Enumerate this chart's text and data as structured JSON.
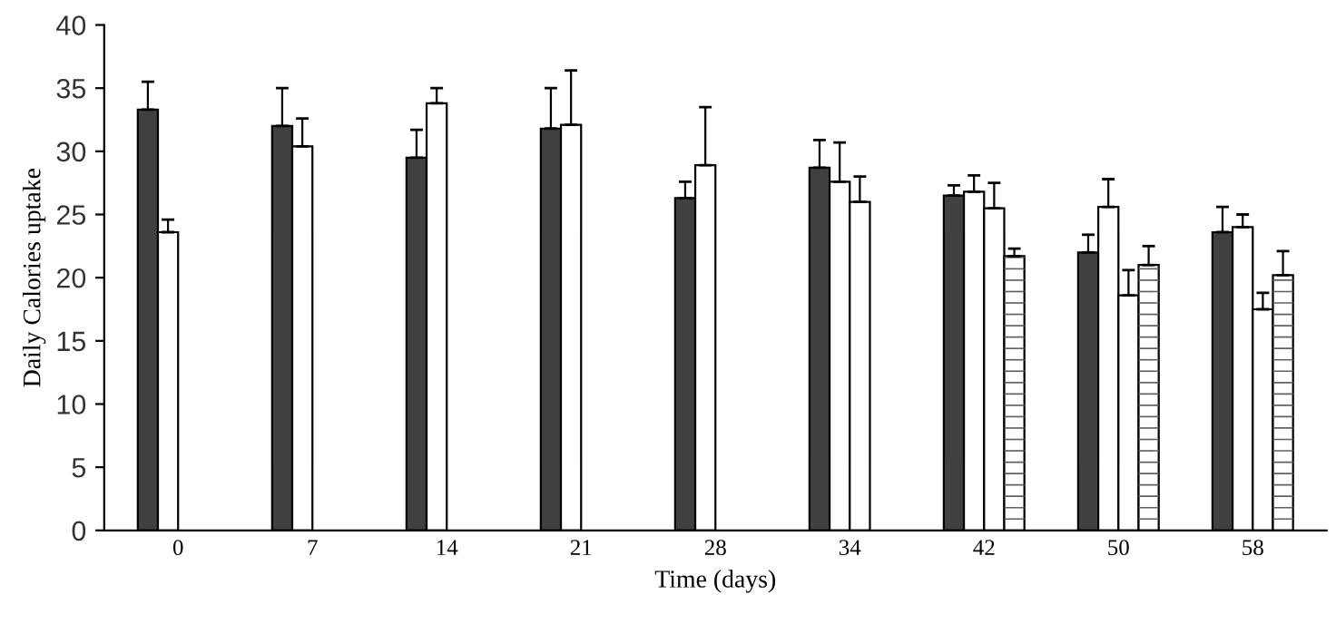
{
  "chart_data": {
    "type": "bar",
    "xlabel": "Time (days)",
    "ylabel": "Daily Calories uptake",
    "categories": [
      "0",
      "7",
      "14",
      "21",
      "28",
      "34",
      "42",
      "50",
      "58"
    ],
    "series": [
      {
        "color": "#404040",
        "values": [
          33.3,
          32.0,
          29.5,
          31.8,
          26.3,
          28.7,
          26.5,
          22.0,
          23.6
        ],
        "errors": [
          2.2,
          3.0,
          2.2,
          3.2,
          1.3,
          2.2,
          0.8,
          1.4,
          2.0
        ]
      },
      {
        "color": "#ffffff",
        "values": [
          23.6,
          30.4,
          33.8,
          32.1,
          28.9,
          27.6,
          26.8,
          25.6,
          24.0
        ],
        "errors": [
          1.0,
          2.2,
          1.2,
          4.3,
          4.6,
          3.1,
          1.3,
          2.2,
          1.0
        ]
      },
      {
        "color": "#ffffff",
        "values": [
          null,
          null,
          null,
          null,
          null,
          26.0,
          25.5,
          18.6,
          17.5
        ],
        "errors": [
          null,
          null,
          null,
          null,
          null,
          2.0,
          2.0,
          2.0,
          1.3
        ]
      },
      {
        "color": "#ffffff",
        "values": [
          null,
          null,
          null,
          null,
          null,
          null,
          21.7,
          21.0,
          20.2
        ],
        "errors": [
          null,
          null,
          null,
          null,
          null,
          null,
          0.6,
          1.5,
          1.9
        ]
      }
    ],
    "ylim": [
      0,
      40
    ],
    "yticks": [
      0,
      5,
      10,
      15,
      20,
      25,
      30,
      35,
      40
    ],
    "grid": false,
    "legend": false
  }
}
